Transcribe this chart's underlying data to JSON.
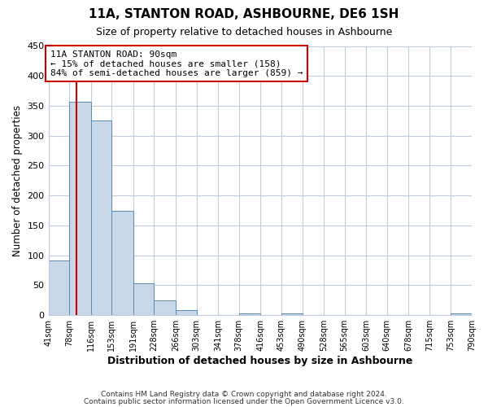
{
  "title": "11A, STANTON ROAD, ASHBOURNE, DE6 1SH",
  "subtitle": "Size of property relative to detached houses in Ashbourne",
  "xlabel": "Distribution of detached houses by size in Ashbourne",
  "ylabel": "Number of detached properties",
  "bin_edges": [
    41,
    78,
    116,
    153,
    191,
    228,
    266,
    303,
    341,
    378,
    416,
    453,
    490,
    528,
    565,
    603,
    640,
    678,
    715,
    753,
    790
  ],
  "bin_heights": [
    92,
    357,
    325,
    175,
    53,
    25,
    8,
    0,
    0,
    3,
    0,
    3,
    0,
    0,
    0,
    0,
    0,
    0,
    0,
    3
  ],
  "bar_color": "#c8d8e8",
  "bar_edgecolor": "#5a8ab0",
  "vline_x": 90,
  "vline_color": "#cc0000",
  "ylim": [
    0,
    450
  ],
  "annotation_title": "11A STANTON ROAD: 90sqm",
  "annotation_line1": "← 15% of detached houses are smaller (158)",
  "annotation_line2": "84% of semi-detached houses are larger (859) →",
  "annotation_box_color": "#cc0000",
  "tick_labels": [
    "41sqm",
    "78sqm",
    "116sqm",
    "153sqm",
    "191sqm",
    "228sqm",
    "266sqm",
    "303sqm",
    "341sqm",
    "378sqm",
    "416sqm",
    "453sqm",
    "490sqm",
    "528sqm",
    "565sqm",
    "603sqm",
    "640sqm",
    "678sqm",
    "715sqm",
    "753sqm",
    "790sqm"
  ],
  "footer1": "Contains HM Land Registry data © Crown copyright and database right 2024.",
  "footer2": "Contains public sector information licensed under the Open Government Licence v3.0.",
  "background_color": "#ffffff",
  "grid_color": "#c0ccdd"
}
